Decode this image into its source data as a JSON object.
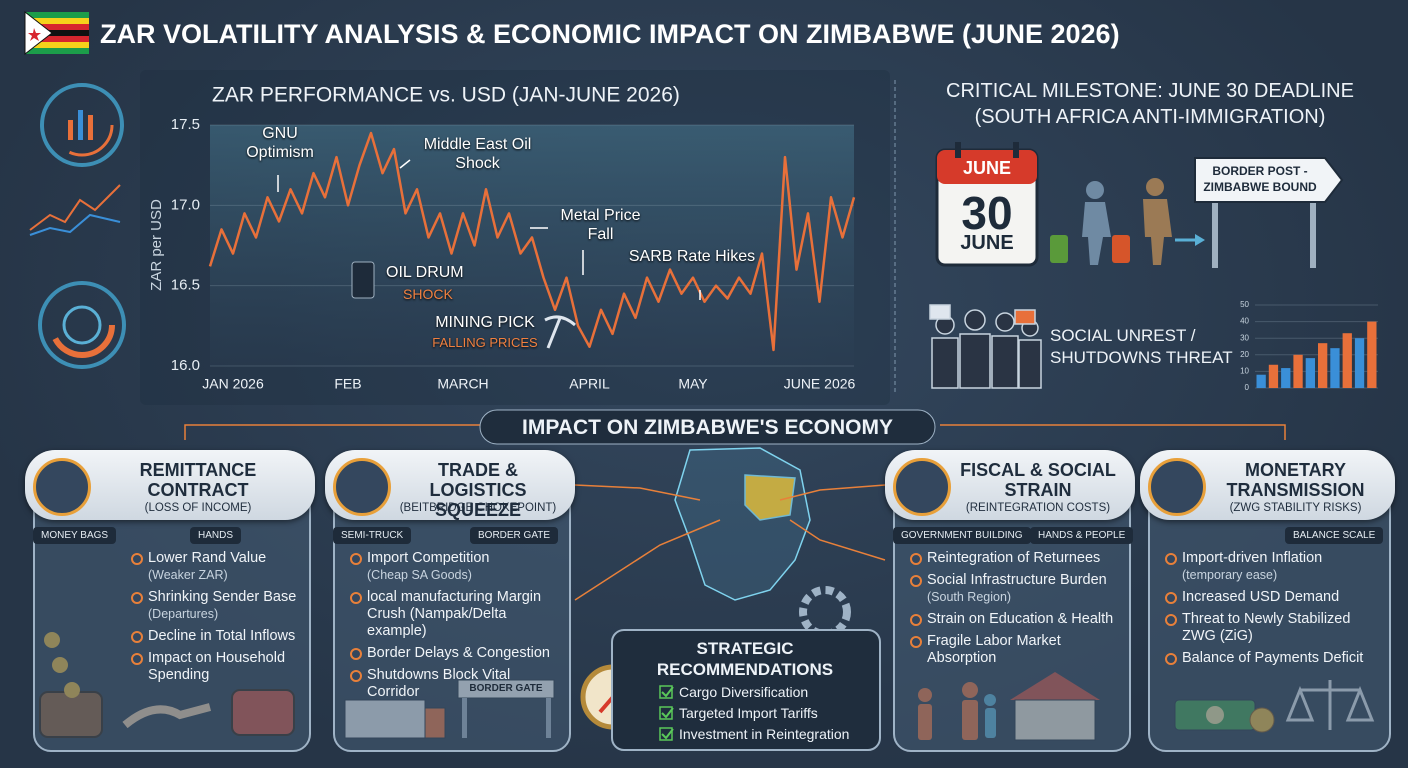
{
  "header": {
    "title": "ZAR VOLATILITY ANALYSIS & ECONOMIC IMPACT ON ZIMBABWE (JUNE 2026)"
  },
  "chart_data": [
    {
      "type": "line",
      "title": "ZAR PERFORMANCE vs. USD (JAN-JUNE 2026)",
      "y_label": "ZAR per USD",
      "color": "#e8703a",
      "categories": [
        null,
        null,
        "JAN 2026",
        null,
        null,
        null,
        null,
        null,
        null,
        null,
        null,
        null,
        "FEB",
        null,
        null,
        null,
        null,
        null,
        null,
        null,
        null,
        null,
        "MARCH",
        null,
        null,
        null,
        null,
        null,
        null,
        null,
        null,
        null,
        null,
        "APRIL",
        null,
        null,
        null,
        null,
        null,
        null,
        null,
        null,
        "MAY",
        null,
        null,
        null,
        null,
        null,
        null,
        null,
        null,
        null,
        null,
        "JUNE 2026",
        null,
        null,
        null
      ],
      "values": [
        16.62,
        16.85,
        16.7,
        16.95,
        16.8,
        17.05,
        16.9,
        17.1,
        16.95,
        17.2,
        17.05,
        17.3,
        17.0,
        17.25,
        17.45,
        17.2,
        17.35,
        16.95,
        17.1,
        16.8,
        16.95,
        16.7,
        16.95,
        16.75,
        17.1,
        16.8,
        16.95,
        16.7,
        16.8,
        16.55,
        16.35,
        16.55,
        16.25,
        16.12,
        16.35,
        16.2,
        16.45,
        16.3,
        16.55,
        16.4,
        16.6,
        16.45,
        16.55,
        16.4,
        16.5,
        16.42,
        16.55,
        16.45,
        16.7,
        16.1,
        17.3,
        16.6,
        16.95,
        16.4,
        17.05,
        16.8,
        17.05
      ],
      "ylim": [
        16,
        17.5
      ],
      "yticks": [
        {
          "value": 16,
          "label": "16.0"
        },
        16.5,
        {
          "value": 17,
          "label": "17.0"
        },
        17.5
      ],
      "grid": true,
      "annotations": [
        "GNU Optimism",
        "Middle East Oil Shock",
        "Metal Price Fall",
        "SARB Rate Hikes",
        "OIL DRUM",
        "SHOCK",
        "MINING PICK",
        "FALLING PRICES"
      ]
    },
    {
      "type": "bar",
      "values": [
        8,
        14,
        12,
        20,
        18,
        27,
        24,
        33,
        30,
        40
      ],
      "colors": [
        "#3a8fd8",
        "#e8703a",
        "#3a8fd8",
        "#e8703a",
        "#3a8fd8",
        "#e8703a",
        "#3a8fd8",
        "#e8703a",
        "#3a8fd8",
        "#e8703a"
      ],
      "ylim": [
        0,
        50
      ],
      "yticks": [
        0,
        10,
        20,
        30,
        40,
        50
      ]
    }
  ],
  "milestone": {
    "title": "CRITICAL MILESTONE: JUNE 30 DEADLINE",
    "subtitle": "(SOUTH AFRICA ANTI-IMMIGRATION)",
    "calendar_month": "JUNE",
    "calendar_day": "30",
    "calendar_footer": "JUNE",
    "sign": "BORDER POST - ZIMBABWE BOUND",
    "unrest": "SOCIAL UNREST / SHUTDOWNS THREAT"
  },
  "impact": {
    "title": "IMPACT ON ZIMBABWE'S ECONOMY",
    "cards": [
      {
        "title": "REMITTANCE CONTRACT",
        "subtitle": "(LOSS OF INCOME)",
        "tags": [
          "MONEY BAGS",
          "HANDS"
        ],
        "items": [
          {
            "text": "Lower Rand Value",
            "note": "(Weaker ZAR)"
          },
          {
            "text": "Shrinking Sender Base",
            "note": "(Departures)"
          },
          {
            "text": "Decline in Total Inflows"
          },
          {
            "text": "Impact on Household Spending"
          }
        ]
      },
      {
        "title": "TRADE & LOGISTICS SQUEEZE",
        "subtitle": "(BEITBRIDGE CHOKEPOINT)",
        "tags": [
          "SEMI-TRUCK",
          "BORDER GATE"
        ],
        "items": [
          {
            "text": "Import Competition",
            "note": "(Cheap SA Goods)"
          },
          {
            "text": "local manufacturing Margin Crush (Nampak/Delta example)"
          },
          {
            "text": "Border Delays & Congestion"
          },
          {
            "text": "Shutdowns Block Vital Corridor"
          }
        ],
        "image_label": "BORDER GATE"
      },
      {
        "title": "FISCAL & SOCIAL STRAIN",
        "subtitle": "(REINTEGRATION COSTS)",
        "tags": [
          "GOVERNMENT BUILDING",
          "HANDS & PEOPLE"
        ],
        "items": [
          {
            "text": "Reintegration of Returnees"
          },
          {
            "text": "Social Infrastructure Burden",
            "note": "(South Region)"
          },
          {
            "text": "Strain on Education & Health"
          },
          {
            "text": "Fragile Labor Market Absorption"
          }
        ]
      },
      {
        "title": "MONETARY TRANSMISSION",
        "subtitle": "(ZWG STABILITY RISKS)",
        "tags": [
          "BALANCE SCALE"
        ],
        "items": [
          {
            "text": "Import-driven Inflation",
            "note": "(temporary ease)"
          },
          {
            "text": "Increased USD Demand"
          },
          {
            "text": "Threat to Newly Stabilized ZWG (ZiG)"
          },
          {
            "text": "Balance of Payments Deficit"
          }
        ]
      }
    ],
    "strategy": {
      "title": "STRATEGIC RECOMMENDATIONS",
      "items": [
        "Cargo Diversification",
        "Targeted Import Tariffs",
        "Investment in Reintegration"
      ]
    }
  }
}
